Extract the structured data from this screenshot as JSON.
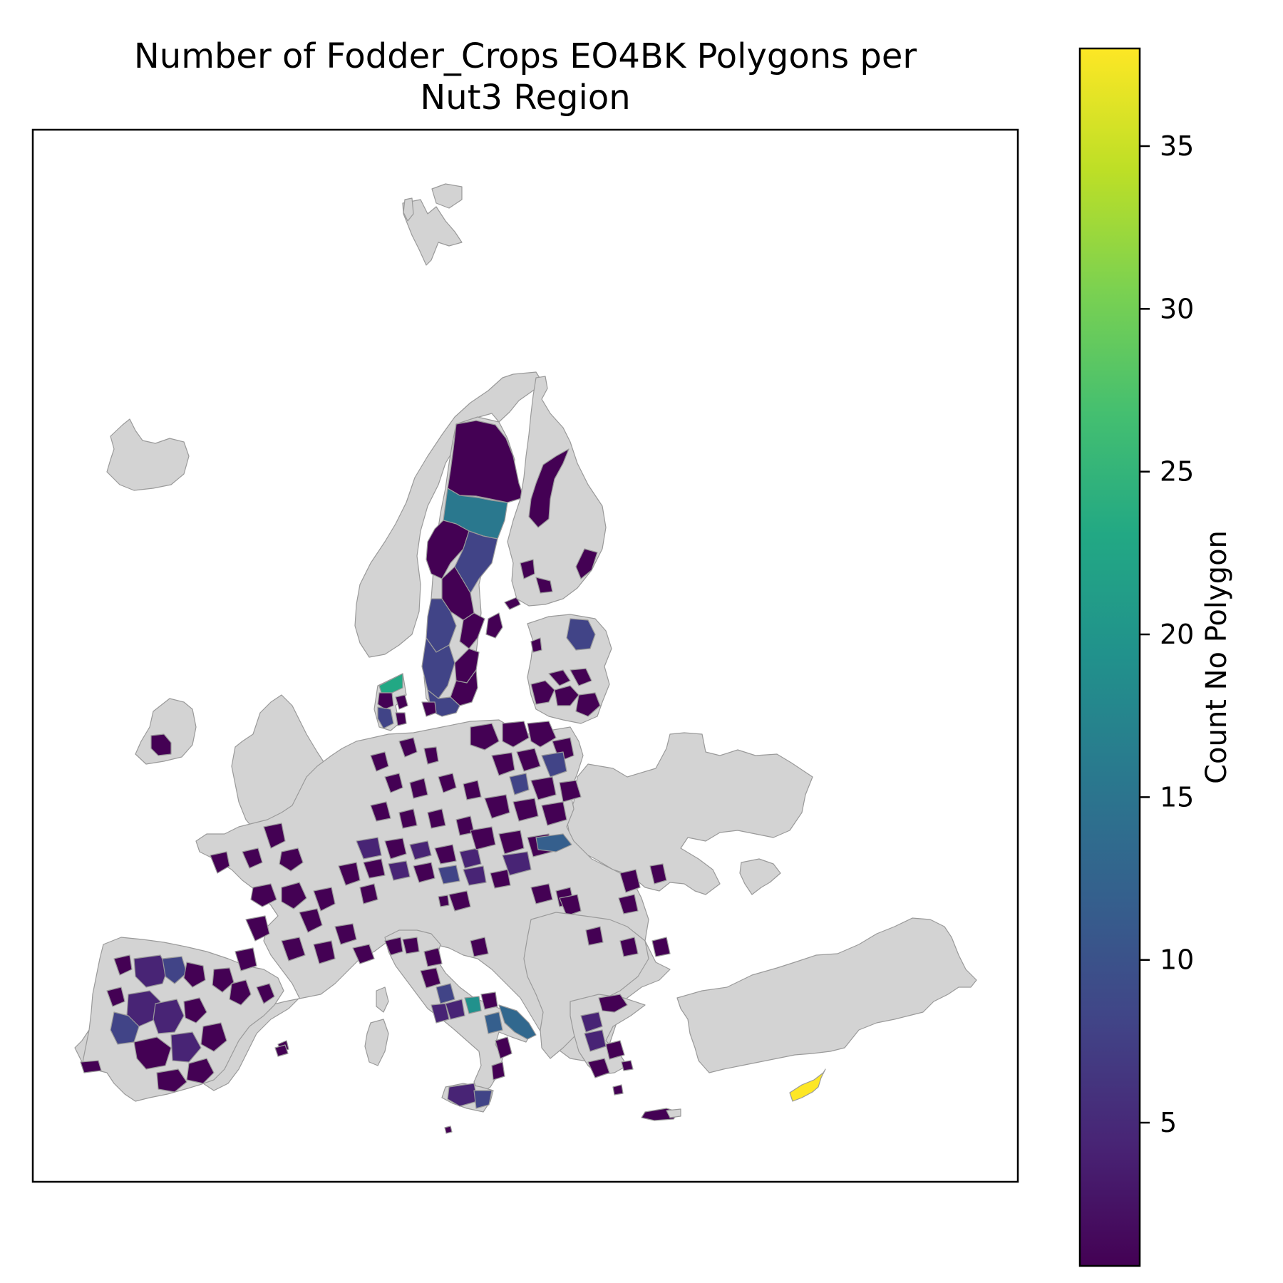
{
  "chart_data": {
    "type": "choropleth",
    "title_lines": [
      "Number of Fodder_Crops EO4BK Polygons per",
      "Nut3 Region"
    ],
    "colorbar": {
      "label": "Count No Polygon",
      "colormap": "viridis",
      "min": 0.6,
      "max": 38,
      "ticks": [
        5,
        10,
        15,
        20,
        25,
        30,
        35
      ]
    },
    "no_data_color": "#d3d3d3",
    "regions": [
      {
        "area": "North Sweden (Norrbotten)",
        "value": 1
      },
      {
        "area": "Västerbotten",
        "value": 15
      },
      {
        "area": "Jämtland",
        "value": 1
      },
      {
        "area": "Västernorrland",
        "value": 7
      },
      {
        "area": "Dalarna",
        "value": 2
      },
      {
        "area": "Värmland",
        "value": 8
      },
      {
        "area": "Västra Götaland",
        "value": 8
      },
      {
        "area": "Skåne",
        "value": 3
      },
      {
        "area": "North Jutland",
        "value": 22
      },
      {
        "area": "Central Jutland",
        "value": 9
      },
      {
        "area": "Lapland Finland",
        "value": 2
      },
      {
        "area": "Estonia region",
        "value": 9
      },
      {
        "area": "East Poland region",
        "value": 12
      },
      {
        "area": "Campania",
        "value": 20
      },
      {
        "area": "Basilicata",
        "value": 12
      },
      {
        "area": "Puglia",
        "value": 13
      },
      {
        "area": "Sicily",
        "value": 6
      },
      {
        "area": "Castilla y León",
        "value": 6
      },
      {
        "area": "Castilla-La Mancha",
        "value": 7
      },
      {
        "area": "Cyprus",
        "value": 38
      }
    ]
  }
}
